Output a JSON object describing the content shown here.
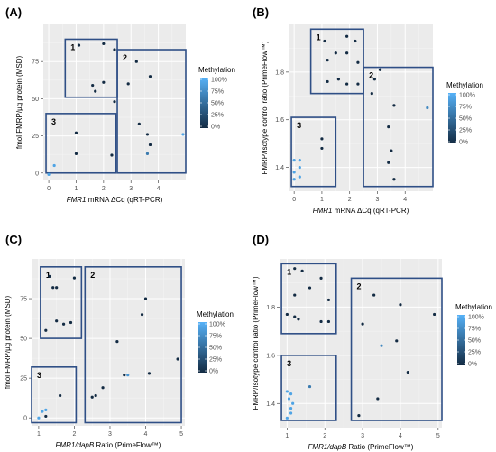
{
  "panels": [
    {
      "letter": "(A)"
    },
    {
      "letter": "(B)"
    },
    {
      "letter": "(C)"
    },
    {
      "letter": "(D)"
    }
  ],
  "chart_data": [
    {
      "type": "scatter",
      "panel": "(A)",
      "xlabel": "FMR1 mRNA ΔCq (qRT-PCR)",
      "xlabel_italic": "FMR1",
      "xlabel_rest": " mRNA ΔCq (qRT-PCR)",
      "ylabel": "fmol FMRP/µg protein (MSD)",
      "xlim": [
        -0.2,
        5.0
      ],
      "ylim": [
        -5,
        100
      ],
      "xticks": [
        0,
        1,
        2,
        3,
        4
      ],
      "yticks": [
        0,
        25,
        50,
        75
      ],
      "legend": {
        "title": "Methylation",
        "labels": [
          "100%",
          "75%",
          "50%",
          "25%",
          "0%"
        ],
        "colors": [
          "#56b1f7",
          "#132b43"
        ]
      },
      "groups": [
        {
          "label": "1",
          "x": [
            0.6,
            2.5
          ],
          "y": [
            51,
            90
          ]
        },
        {
          "label": "2",
          "x": [
            2.5,
            5.0
          ],
          "y": [
            0,
            83
          ]
        },
        {
          "label": "3",
          "x": [
            -0.1,
            2.45
          ],
          "y": [
            0,
            40
          ]
        }
      ],
      "points": [
        {
          "x": 1.1,
          "y": 86,
          "m": 0
        },
        {
          "x": 2.0,
          "y": 87,
          "m": 0
        },
        {
          "x": 2.4,
          "y": 83,
          "m": 0
        },
        {
          "x": 1.6,
          "y": 59,
          "m": 0
        },
        {
          "x": 1.7,
          "y": 55,
          "m": 0
        },
        {
          "x": 2.0,
          "y": 61,
          "m": 0
        },
        {
          "x": 3.2,
          "y": 75,
          "m": 0
        },
        {
          "x": 3.7,
          "y": 65,
          "m": 0
        },
        {
          "x": 2.9,
          "y": 60,
          "m": 0
        },
        {
          "x": 2.4,
          "y": 48,
          "m": 0
        },
        {
          "x": 3.3,
          "y": 33,
          "m": 0
        },
        {
          "x": 3.6,
          "y": 26,
          "m": 0
        },
        {
          "x": 3.7,
          "y": 19,
          "m": 0
        },
        {
          "x": 3.6,
          "y": 13,
          "m": 0.6
        },
        {
          "x": 4.9,
          "y": 26,
          "m": 0.9
        },
        {
          "x": 1.0,
          "y": 27,
          "m": 0
        },
        {
          "x": 1.0,
          "y": 13,
          "m": 0
        },
        {
          "x": 2.3,
          "y": 12,
          "m": 0
        },
        {
          "x": 0.2,
          "y": 5,
          "m": 0.9
        },
        {
          "x": 0.0,
          "y": -1,
          "m": 0.9
        }
      ]
    },
    {
      "type": "scatter",
      "panel": "(B)",
      "xlabel": "FMR1 mRNA ΔCq (qRT-PCR)",
      "xlabel_italic": "FMR1",
      "xlabel_rest": " mRNA ΔCq (qRT-PCR)",
      "ylabel": "FMRP/Isotype control ratio (PrimeFlow™)",
      "xlim": [
        -0.2,
        5.0
      ],
      "ylim": [
        1.3,
        2.0
      ],
      "xticks": [
        0,
        1,
        2,
        3,
        4
      ],
      "yticks": [
        1.4,
        1.6,
        1.8
      ],
      "legend": {
        "title": "Methylation",
        "labels": [
          "100%",
          "75%",
          "50%",
          "25%",
          "0%"
        ],
        "colors": [
          "#56b1f7",
          "#132b43"
        ]
      },
      "groups": [
        {
          "label": "1",
          "x": [
            0.6,
            2.5
          ],
          "y": [
            1.71,
            1.98
          ]
        },
        {
          "label": "2",
          "x": [
            2.5,
            5.0
          ],
          "y": [
            1.32,
            1.82
          ]
        },
        {
          "label": "3",
          "x": [
            -0.1,
            1.5
          ],
          "y": [
            1.32,
            1.61
          ]
        }
      ],
      "points": [
        {
          "x": 1.1,
          "y": 1.93,
          "m": 0
        },
        {
          "x": 1.9,
          "y": 1.95,
          "m": 0
        },
        {
          "x": 2.2,
          "y": 1.93,
          "m": 0
        },
        {
          "x": 1.5,
          "y": 1.88,
          "m": 0
        },
        {
          "x": 1.2,
          "y": 1.85,
          "m": 0
        },
        {
          "x": 1.9,
          "y": 1.88,
          "m": 0
        },
        {
          "x": 2.3,
          "y": 1.84,
          "m": 0
        },
        {
          "x": 1.2,
          "y": 1.76,
          "m": 0
        },
        {
          "x": 1.6,
          "y": 1.77,
          "m": 0
        },
        {
          "x": 1.9,
          "y": 1.75,
          "m": 0
        },
        {
          "x": 2.3,
          "y": 1.75,
          "m": 0
        },
        {
          "x": 2.9,
          "y": 1.77,
          "m": 0
        },
        {
          "x": 3.1,
          "y": 1.81,
          "m": 0
        },
        {
          "x": 2.8,
          "y": 1.71,
          "m": 0
        },
        {
          "x": 3.6,
          "y": 1.66,
          "m": 0
        },
        {
          "x": 4.8,
          "y": 1.65,
          "m": 0.7
        },
        {
          "x": 3.4,
          "y": 1.57,
          "m": 0
        },
        {
          "x": 3.5,
          "y": 1.47,
          "m": 0
        },
        {
          "x": 3.4,
          "y": 1.42,
          "m": 0
        },
        {
          "x": 3.6,
          "y": 1.35,
          "m": 0
        },
        {
          "x": 1.0,
          "y": 1.52,
          "m": 0
        },
        {
          "x": 1.0,
          "y": 1.48,
          "m": 0
        },
        {
          "x": 0.0,
          "y": 1.43,
          "m": 0.9
        },
        {
          "x": 0.2,
          "y": 1.43,
          "m": 0.9
        },
        {
          "x": 0.2,
          "y": 1.4,
          "m": 0.9
        },
        {
          "x": 0.0,
          "y": 1.38,
          "m": 0.9
        },
        {
          "x": 0.2,
          "y": 1.36,
          "m": 0.9
        },
        {
          "x": 0.0,
          "y": 1.35,
          "m": 0.9
        }
      ]
    },
    {
      "type": "scatter",
      "panel": "(C)",
      "xlabel": "FMR1/dapB Ratio (PrimeFlow™)",
      "xlabel_italic": "FMR1/dapB",
      "xlabel_rest": " Ratio (PrimeFlow™)",
      "ylabel": "fmol FMRP/µg protein (MSD)",
      "xlim": [
        0.8,
        5.1
      ],
      "ylim": [
        -5,
        100
      ],
      "xticks": [
        1,
        2,
        3,
        4,
        5
      ],
      "yticks": [
        0,
        25,
        50,
        75
      ],
      "legend": {
        "title": "Methylation",
        "labels": [
          "100%",
          "75%",
          "50%",
          "25%",
          "0%"
        ],
        "colors": [
          "#56b1f7",
          "#132b43"
        ]
      },
      "groups": [
        {
          "label": "1",
          "x": [
            1.05,
            2.2
          ],
          "y": [
            50,
            95
          ]
        },
        {
          "label": "2",
          "x": [
            2.3,
            5.0
          ],
          "y": [
            -3,
            95
          ]
        },
        {
          "label": "3",
          "x": [
            0.8,
            2.05
          ],
          "y": [
            -3,
            32
          ]
        }
      ],
      "points": [
        {
          "x": 1.3,
          "y": 89,
          "m": 0
        },
        {
          "x": 2.0,
          "y": 88,
          "m": 0
        },
        {
          "x": 1.4,
          "y": 82,
          "m": 0
        },
        {
          "x": 1.5,
          "y": 82,
          "m": 0
        },
        {
          "x": 1.2,
          "y": 55,
          "m": 0
        },
        {
          "x": 1.5,
          "y": 61,
          "m": 0
        },
        {
          "x": 1.7,
          "y": 59,
          "m": 0
        },
        {
          "x": 1.9,
          "y": 60,
          "m": 0
        },
        {
          "x": 4.0,
          "y": 75,
          "m": 0
        },
        {
          "x": 3.9,
          "y": 65,
          "m": 0
        },
        {
          "x": 3.2,
          "y": 48,
          "m": 0
        },
        {
          "x": 4.9,
          "y": 37,
          "m": 0
        },
        {
          "x": 3.4,
          "y": 27,
          "m": 0
        },
        {
          "x": 3.5,
          "y": 27,
          "m": 0.8
        },
        {
          "x": 4.1,
          "y": 28,
          "m": 0
        },
        {
          "x": 2.8,
          "y": 19,
          "m": 0
        },
        {
          "x": 2.6,
          "y": 14,
          "m": 0
        },
        {
          "x": 2.5,
          "y": 13,
          "m": 0
        },
        {
          "x": 1.6,
          "y": 14,
          "m": 0
        },
        {
          "x": 1.1,
          "y": 4,
          "m": 0.9
        },
        {
          "x": 1.2,
          "y": 5,
          "m": 0.9
        },
        {
          "x": 1.0,
          "y": 0,
          "m": 0.9
        },
        {
          "x": 1.2,
          "y": 1,
          "m": 0
        }
      ]
    },
    {
      "type": "scatter",
      "panel": "(D)",
      "xlabel": "FMR1/dapB Ratio (PrimeFlow™)",
      "xlabel_italic": "FMR1/dapB",
      "xlabel_rest": " Ratio (PrimeFlow™)",
      "ylabel": "FMRP/Isotype control ratio (PrimeFlow™)",
      "xlim": [
        0.8,
        5.1
      ],
      "ylim": [
        1.3,
        2.0
      ],
      "xticks": [
        1,
        2,
        3,
        4,
        5
      ],
      "yticks": [
        1.4,
        1.6,
        1.8
      ],
      "legend": {
        "title": "Methylation",
        "labels": [
          "100%",
          "75%",
          "50%",
          "25%",
          "0%"
        ],
        "colors": [
          "#56b1f7",
          "#132b43"
        ]
      },
      "groups": [
        {
          "label": "1",
          "x": [
            0.85,
            2.3
          ],
          "y": [
            1.69,
            1.98
          ]
        },
        {
          "label": "2",
          "x": [
            2.7,
            5.1
          ],
          "y": [
            1.33,
            1.92
          ]
        },
        {
          "label": "3",
          "x": [
            0.85,
            2.3
          ],
          "y": [
            1.33,
            1.6
          ]
        }
      ],
      "points": [
        {
          "x": 1.2,
          "y": 1.96,
          "m": 0
        },
        {
          "x": 1.4,
          "y": 1.95,
          "m": 0
        },
        {
          "x": 1.9,
          "y": 1.92,
          "m": 0
        },
        {
          "x": 1.6,
          "y": 1.88,
          "m": 0
        },
        {
          "x": 1.2,
          "y": 1.85,
          "m": 0
        },
        {
          "x": 1.0,
          "y": 1.77,
          "m": 0
        },
        {
          "x": 1.2,
          "y": 1.76,
          "m": 0
        },
        {
          "x": 1.3,
          "y": 1.75,
          "m": 0
        },
        {
          "x": 1.9,
          "y": 1.74,
          "m": 0
        },
        {
          "x": 2.1,
          "y": 1.83,
          "m": 0
        },
        {
          "x": 2.1,
          "y": 1.74,
          "m": 0
        },
        {
          "x": 3.3,
          "y": 1.85,
          "m": 0
        },
        {
          "x": 4.0,
          "y": 1.81,
          "m": 0
        },
        {
          "x": 4.9,
          "y": 1.77,
          "m": 0
        },
        {
          "x": 3.0,
          "y": 1.73,
          "m": 0
        },
        {
          "x": 3.9,
          "y": 1.66,
          "m": 0
        },
        {
          "x": 3.5,
          "y": 1.64,
          "m": 0.7
        },
        {
          "x": 4.2,
          "y": 1.53,
          "m": 0
        },
        {
          "x": 3.4,
          "y": 1.42,
          "m": 0
        },
        {
          "x": 2.9,
          "y": 1.35,
          "m": 0
        },
        {
          "x": 1.0,
          "y": 1.45,
          "m": 0.9
        },
        {
          "x": 1.1,
          "y": 1.44,
          "m": 0.9
        },
        {
          "x": 1.05,
          "y": 1.42,
          "m": 0.9
        },
        {
          "x": 1.15,
          "y": 1.4,
          "m": 0.9
        },
        {
          "x": 1.1,
          "y": 1.38,
          "m": 0.9
        },
        {
          "x": 1.1,
          "y": 1.36,
          "m": 0.9
        },
        {
          "x": 1.0,
          "y": 1.34,
          "m": 0.9
        },
        {
          "x": 1.6,
          "y": 1.47,
          "m": 0.6
        }
      ]
    }
  ]
}
